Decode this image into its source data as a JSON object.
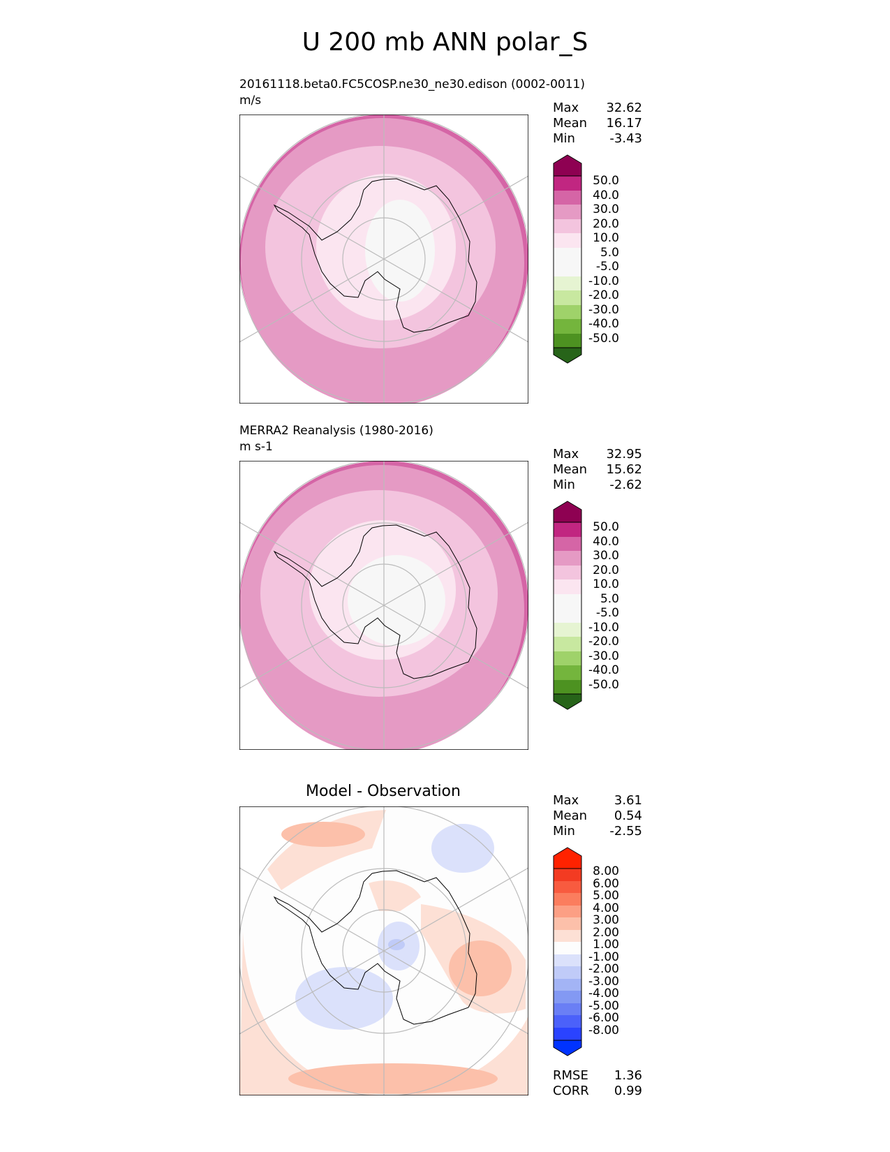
{
  "title": "U 200 mb ANN polar_S",
  "colors": {
    "pink": [
      "#f7f7f7",
      "#fbe5f0",
      "#f3c4de",
      "#e59ac4",
      "#d565a6",
      "#c12681",
      "#8e0152"
    ],
    "green": [
      "#f7f7f7",
      "#e6f4d2",
      "#c8e8a0",
      "#9fd26a",
      "#74b53d",
      "#4d9221",
      "#276419"
    ],
    "red": [
      "#fdfdfd",
      "#fde0d5",
      "#fcc0aa",
      "#fc9f84",
      "#fb7d5e",
      "#f85b3f",
      "#f33b22",
      "#ff2200"
    ],
    "blue": [
      "#fdfdfd",
      "#dbe1fb",
      "#c0cbf8",
      "#a3b4f5",
      "#8399f3",
      "#6a7ff5",
      "#4b61fa",
      "#2a43ff",
      "#0033ff"
    ],
    "map_background": "#ffffff",
    "grid_color": "#bbbbbb"
  },
  "chart_data": [
    {
      "type": "heatmap",
      "projection": "polar-south-stereographic",
      "title": "20161118.beta0.FC5COSP.ne30_ne30.edison (0002-0011)",
      "units": "m/s",
      "stats": {
        "max_label": "Max",
        "max": "32.62",
        "mean_label": "Mean",
        "mean": "16.17",
        "min_label": "Min",
        "min": "-3.43"
      },
      "colorbar": {
        "levels": [
          "50.0",
          "40.0",
          "30.0",
          "20.0",
          "10.0",
          "5.0",
          "-5.0",
          "-10.0",
          "-20.0",
          "-30.0",
          "-40.0",
          "-50.0"
        ],
        "palette": "pink-green"
      },
      "field": {
        "band_levels_m_s": [
          30,
          20,
          10,
          5
        ],
        "description_regions": "strong westerlies 20-30 m/s over Southern Ocean; 5-10 m/s over Antarctic interior; near-zero at pole"
      }
    },
    {
      "type": "heatmap",
      "projection": "polar-south-stereographic",
      "title": "MERRA2 Reanalysis (1980-2016)",
      "units": "m s-1",
      "stats": {
        "max_label": "Max",
        "max": "32.95",
        "mean_label": "Mean",
        "mean": "15.62",
        "min_label": "Min",
        "min": "-2.62"
      },
      "colorbar": {
        "levels": [
          "50.0",
          "40.0",
          "30.0",
          "20.0",
          "10.0",
          "5.0",
          "-5.0",
          "-10.0",
          "-20.0",
          "-30.0",
          "-40.0",
          "-50.0"
        ],
        "palette": "pink-green"
      },
      "field": {
        "band_levels_m_s": [
          30,
          20,
          10,
          5
        ]
      }
    },
    {
      "type": "heatmap",
      "projection": "polar-south-stereographic",
      "title": "Model - Observation",
      "units": "",
      "stats": {
        "max_label": "Max",
        "max": "3.61",
        "mean_label": "Mean",
        "mean": "0.54",
        "min_label": "Min",
        "min": "-2.55"
      },
      "colorbar": {
        "levels": [
          "8.00",
          "6.00",
          "5.00",
          "4.00",
          "3.00",
          "2.00",
          "1.00",
          "-1.00",
          "-2.00",
          "-3.00",
          "-4.00",
          "-5.00",
          "-6.00",
          "-8.00"
        ],
        "palette": "red-blue"
      },
      "metrics": {
        "rmse_label": "RMSE",
        "rmse": "1.36",
        "corr_label": "CORR",
        "corr": "0.99"
      }
    }
  ]
}
